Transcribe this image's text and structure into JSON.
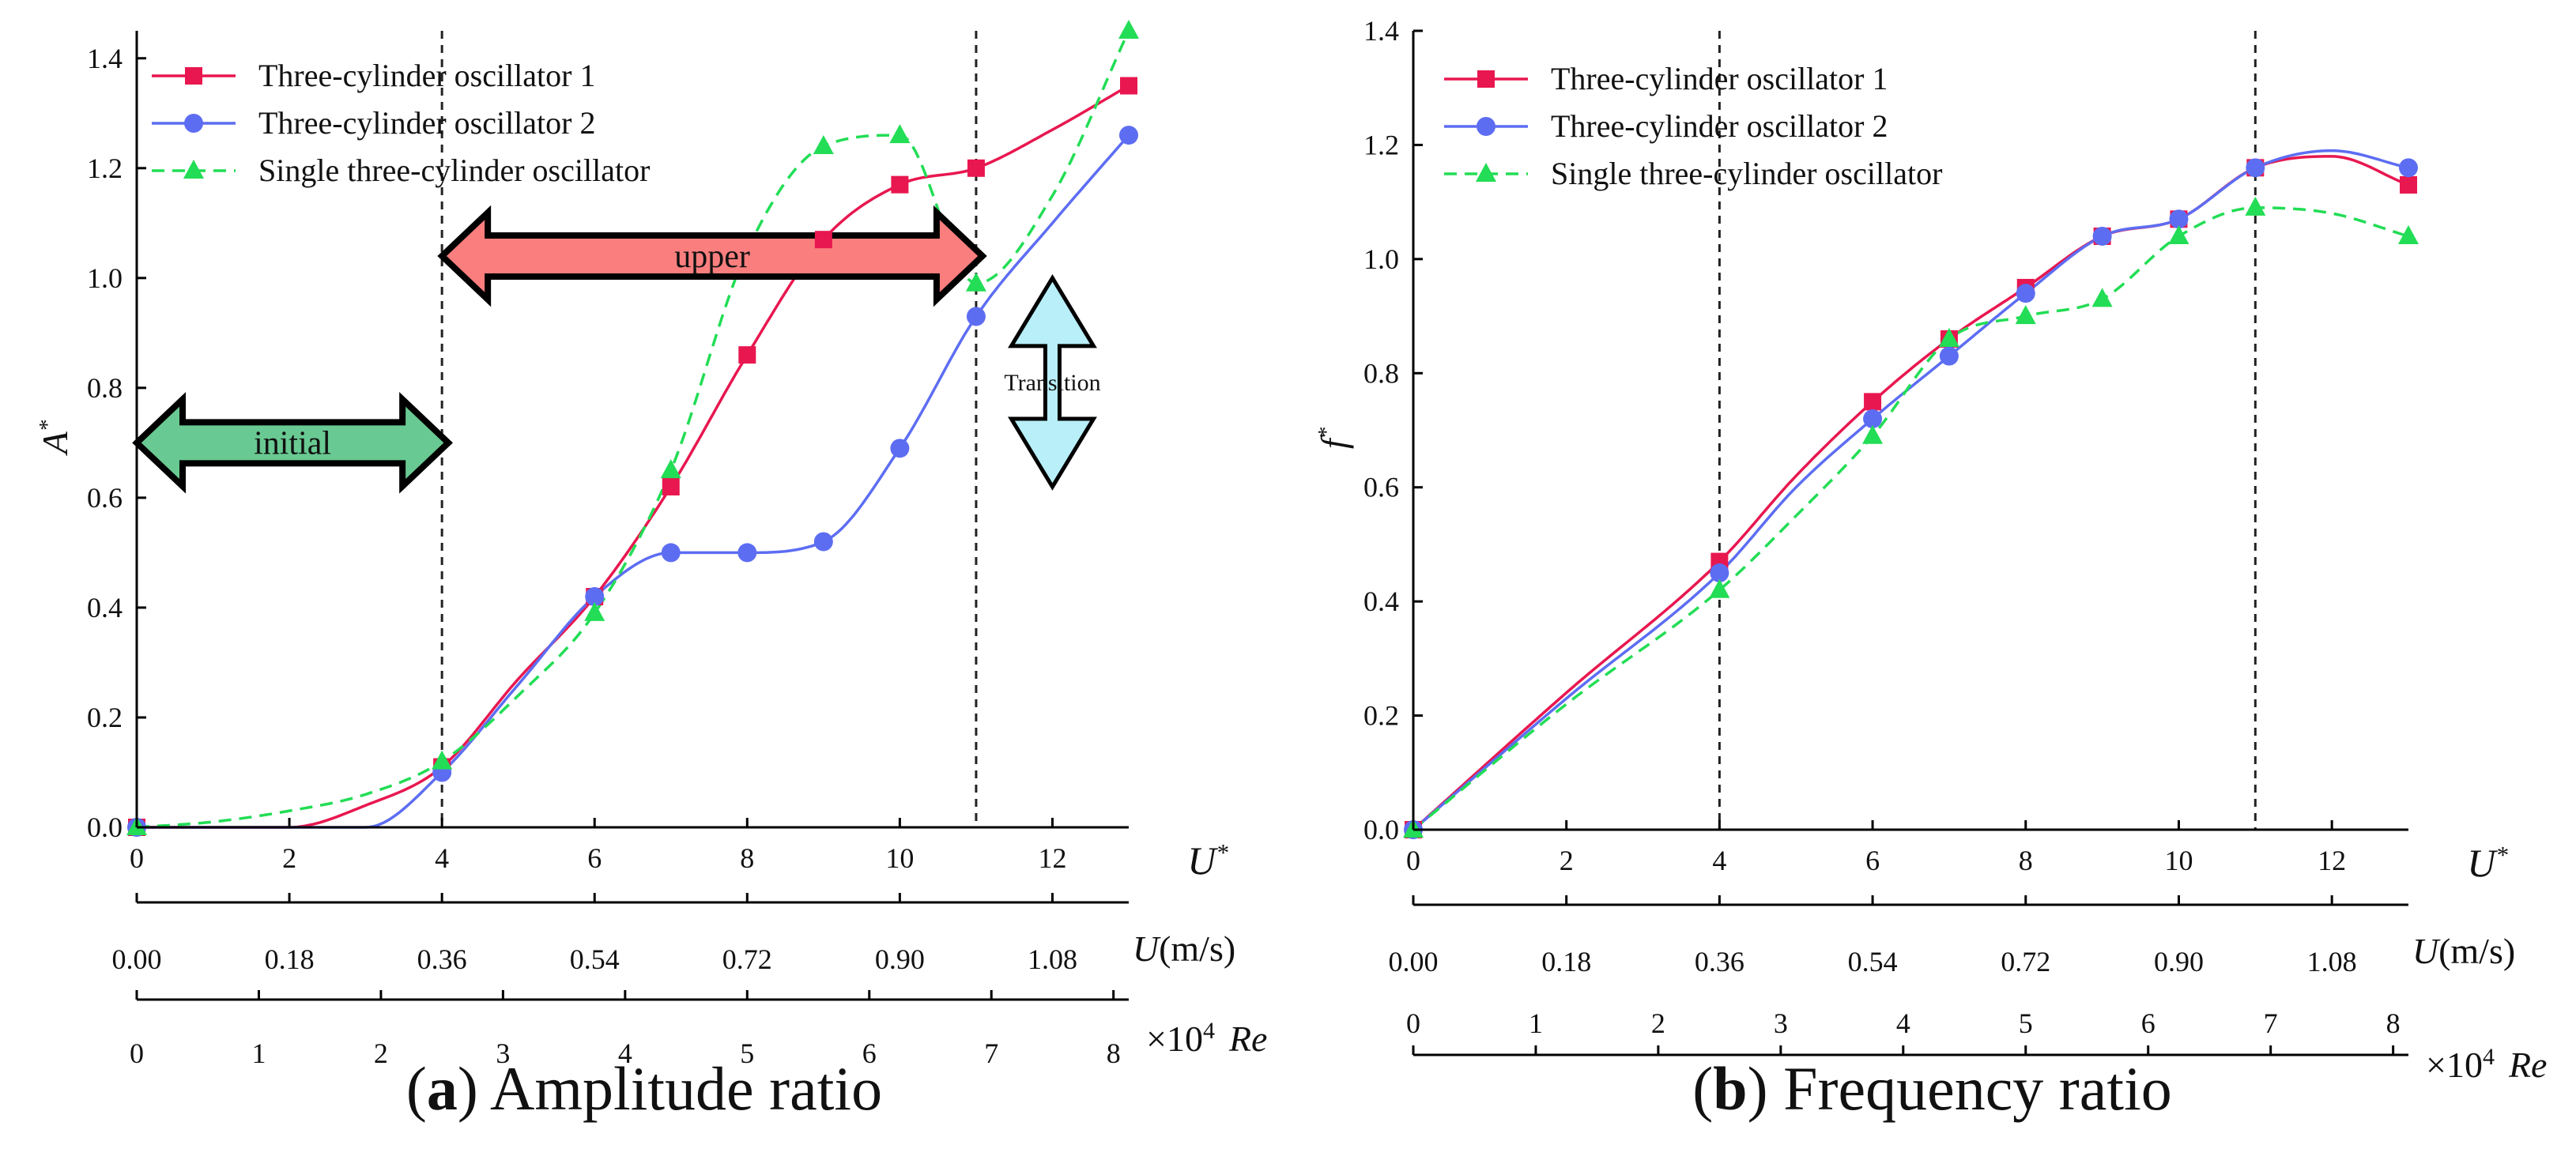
{
  "captions": [
    {
      "letter": "a",
      "text": "Amplitude ratio"
    },
    {
      "letter": "b",
      "text": "Frequency ratio"
    }
  ],
  "colors": {
    "series1": "#e8174f",
    "series2": "#5d6df2",
    "series3": "#22dd55",
    "arrow_upper": "#fb7e7e",
    "arrow_initial": "#69c992",
    "arrow_transition": "#b8eff9"
  },
  "chart_data": [
    {
      "type": "line",
      "panel": "a",
      "ylabel": "A",
      "ylabel_sup": "*",
      "xlabel": "U",
      "xlabel_sup": "*",
      "xlim": [
        0,
        13
      ],
      "ylim": [
        0,
        1.45
      ],
      "xticks": [
        0,
        2,
        4,
        6,
        8,
        10,
        12
      ],
      "yticks": [
        0.0,
        0.2,
        0.4,
        0.6,
        0.8,
        1.0,
        1.2,
        1.4
      ],
      "ytick_labels": [
        "0.0",
        "0.2",
        "0.4",
        "0.6",
        "0.8",
        "1.0",
        "1.2",
        "1.4"
      ],
      "grid": false,
      "legend_position": "top-left",
      "vlines": [
        4,
        11
      ],
      "secondary_axes": [
        {
          "label": "U(m/s)",
          "ticks": [
            {
              "u": 0,
              "label": "0.00"
            },
            {
              "u": 2,
              "label": "0.18"
            },
            {
              "u": 4,
              "label": "0.36"
            },
            {
              "u": 6,
              "label": "0.54"
            },
            {
              "u": 8,
              "label": "0.72"
            },
            {
              "u": 10,
              "label": "0.90"
            },
            {
              "u": 12,
              "label": "1.08"
            }
          ]
        },
        {
          "label": "Re",
          "prefix": "×10",
          "prefix_sup": "4",
          "ticks": [
            {
              "u": 0,
              "label": "0"
            },
            {
              "u": 1.6,
              "label": "1"
            },
            {
              "u": 3.2,
              "label": "2"
            },
            {
              "u": 4.8,
              "label": "3"
            },
            {
              "u": 6.4,
              "label": "4"
            },
            {
              "u": 8.0,
              "label": "5"
            },
            {
              "u": 9.6,
              "label": "6"
            },
            {
              "u": 11.2,
              "label": "7"
            },
            {
              "u": 12.8,
              "label": "8"
            }
          ]
        }
      ],
      "series": [
        {
          "name": "Three-cylinder oscillator 1",
          "marker": "square",
          "dash": false,
          "points": [
            [
              0,
              0.0
            ],
            [
              4,
              0.11
            ],
            [
              6,
              0.42
            ],
            [
              7,
              0.62
            ],
            [
              8,
              0.86
            ],
            [
              9,
              1.07
            ],
            [
              10,
              1.17
            ],
            [
              11,
              1.2
            ],
            [
              13,
              1.35
            ]
          ],
          "curve": [
            [
              1,
              0.0
            ],
            [
              2,
              0.0
            ],
            [
              3,
              0.04
            ],
            [
              5,
              0.27
            ],
            [
              12,
              1.27
            ]
          ]
        },
        {
          "name": "Three-cylinder oscillator 2",
          "marker": "circle",
          "dash": false,
          "points": [
            [
              0,
              0.0
            ],
            [
              4,
              0.1
            ],
            [
              6,
              0.42
            ],
            [
              7,
              0.5
            ],
            [
              8,
              0.5
            ],
            [
              9,
              0.52
            ],
            [
              10,
              0.69
            ],
            [
              11,
              0.93
            ],
            [
              13,
              1.26
            ]
          ],
          "curve": [
            [
              1,
              0.0
            ],
            [
              2,
              0.0
            ],
            [
              3,
              0.0
            ],
            [
              5,
              0.26
            ],
            [
              12,
              1.1
            ]
          ]
        },
        {
          "name": "Single three-cylinder oscillator",
          "marker": "triangle",
          "dash": true,
          "points": [
            [
              0,
              0.0
            ],
            [
              4,
              0.12
            ],
            [
              6,
              0.39
            ],
            [
              7,
              0.65
            ],
            [
              9,
              1.24
            ],
            [
              10,
              1.26
            ],
            [
              11,
              0.99
            ],
            [
              13,
              1.45
            ]
          ],
          "curve": [
            [
              1,
              0.01
            ],
            [
              2,
              0.03
            ],
            [
              3,
              0.06
            ],
            [
              5,
              0.24
            ],
            [
              8,
              1.05
            ],
            [
              12,
              1.15
            ]
          ]
        }
      ],
      "annotations": [
        {
          "text": "upper",
          "from": 4,
          "to": 11,
          "y": 1.04,
          "style": "horizontal-arrow",
          "color": "#fb7e7e"
        },
        {
          "text": "initial",
          "from": 0,
          "to": 4,
          "y": 0.7,
          "style": "horizontal-arrow",
          "color": "#69c992"
        },
        {
          "text": "Transition",
          "x": 12.0,
          "from_y": 0.62,
          "to_y": 1.0,
          "style": "vertical-arrow",
          "color": "#b8eff9"
        }
      ]
    },
    {
      "type": "line",
      "panel": "b",
      "ylabel": "f",
      "ylabel_sup": "*",
      "xlabel": "U",
      "xlabel_sup": "*",
      "xlim": [
        0,
        13
      ],
      "ylim": [
        0,
        1.4
      ],
      "xticks": [
        0,
        2,
        4,
        6,
        8,
        10,
        12
      ],
      "yticks": [
        0.0,
        0.2,
        0.4,
        0.6,
        0.8,
        1.0,
        1.2,
        1.4
      ],
      "ytick_labels": [
        "0.0",
        "0.2",
        "0.4",
        "0.6",
        "0.8",
        "1.0",
        "1.2",
        "1.4"
      ],
      "grid": false,
      "legend_position": "top-left",
      "vlines": [
        4,
        11
      ],
      "secondary_axes": [
        {
          "label": "U(m/s)",
          "ticks": [
            {
              "u": 0,
              "label": "0.00"
            },
            {
              "u": 2,
              "label": "0.18"
            },
            {
              "u": 4,
              "label": "0.36"
            },
            {
              "u": 6,
              "label": "0.54"
            },
            {
              "u": 8,
              "label": "0.72"
            },
            {
              "u": 10,
              "label": "0.90"
            },
            {
              "u": 12,
              "label": "1.08"
            }
          ]
        },
        {
          "label": "Re",
          "prefix": "×10",
          "prefix_sup": "4",
          "ticks": [
            {
              "u": 0,
              "label": "0"
            },
            {
              "u": 1.6,
              "label": "1"
            },
            {
              "u": 3.2,
              "label": "2"
            },
            {
              "u": 4.8,
              "label": "3"
            },
            {
              "u": 6.4,
              "label": "4"
            },
            {
              "u": 8.0,
              "label": "5"
            },
            {
              "u": 9.6,
              "label": "6"
            },
            {
              "u": 11.2,
              "label": "7"
            },
            {
              "u": 12.8,
              "label": "8"
            }
          ]
        }
      ],
      "series": [
        {
          "name": "Three-cylinder oscillator 1",
          "marker": "square",
          "dash": false,
          "points": [
            [
              0,
              0.0
            ],
            [
              4,
              0.47
            ],
            [
              6,
              0.75
            ],
            [
              7,
              0.86
            ],
            [
              8,
              0.95
            ],
            [
              9,
              1.04
            ],
            [
              10,
              1.07
            ],
            [
              11,
              1.16
            ],
            [
              13,
              1.13
            ]
          ],
          "curve": [
            [
              2,
              0.24
            ],
            [
              5,
              0.62
            ],
            [
              12,
              1.18
            ]
          ]
        },
        {
          "name": "Three-cylinder oscillator 2",
          "marker": "circle",
          "dash": false,
          "points": [
            [
              0,
              0.0
            ],
            [
              4,
              0.45
            ],
            [
              6,
              0.72
            ],
            [
              7,
              0.83
            ],
            [
              8,
              0.94
            ],
            [
              9,
              1.04
            ],
            [
              10,
              1.07
            ],
            [
              11,
              1.16
            ],
            [
              13,
              1.16
            ]
          ],
          "curve": [
            [
              2,
              0.23
            ],
            [
              5,
              0.6
            ],
            [
              12,
              1.19
            ]
          ]
        },
        {
          "name": "Single three-cylinder oscillator",
          "marker": "triangle",
          "dash": true,
          "points": [
            [
              0,
              0.0
            ],
            [
              4,
              0.42
            ],
            [
              6,
              0.69
            ],
            [
              7,
              0.86
            ],
            [
              8,
              0.9
            ],
            [
              9,
              0.93
            ],
            [
              10,
              1.04
            ],
            [
              11,
              1.09
            ],
            [
              13,
              1.04
            ]
          ],
          "curve": [
            [
              2,
              0.22
            ],
            [
              5,
              0.55
            ],
            [
              12,
              1.08
            ]
          ]
        }
      ]
    }
  ]
}
